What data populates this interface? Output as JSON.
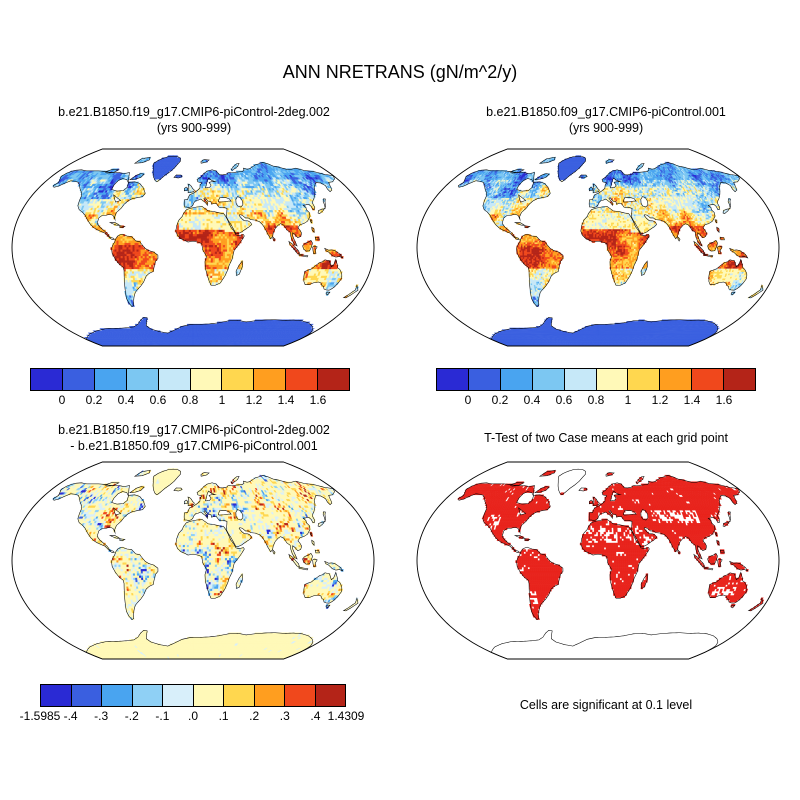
{
  "figure_title": "ANN NRETRANS (gN/m^2/y)",
  "panels": [
    {
      "title_line1": "b.e21.B1850.f19_g17.CMIP6-piControl-2deg.002",
      "title_line2": "(yrs 900-999)"
    },
    {
      "title_line1": "b.e21.B1850.f09_g17.CMIP6-piControl.001",
      "title_line2": "(yrs 900-999)"
    },
    {
      "title_line1": "b.e21.B1850.f19_g17.CMIP6-piControl-2deg.002",
      "title_line2": "- b.e21.B1850.f09_g17.CMIP6-piControl.001"
    },
    {
      "title_line1": "T-Test of two Case means at each grid point",
      "caption": "Cells are significant at 0.1 level"
    }
  ],
  "colorbars": {
    "mean": {
      "tick_labels": [
        "0",
        "0.2",
        "0.4",
        "0.6",
        "0.8",
        "1",
        "1.2",
        "1.4",
        "1.6"
      ],
      "colors": [
        "#2a2ad4",
        "#3a5fe0",
        "#49a4f0",
        "#7cc7f2",
        "#c6e8f8",
        "#fff9b8",
        "#ffd74f",
        "#ff9e1f",
        "#f0481c",
        "#b42418"
      ]
    },
    "diff": {
      "tick_labels": [
        "-1.5985",
        "-.4",
        "-.3",
        "-.2",
        "-.1",
        ".0",
        ".1",
        ".2",
        ".3",
        ".4",
        "1.4309"
      ],
      "colors": [
        "#2a2ad4",
        "#3a5fe0",
        "#49a4f0",
        "#8fd0f5",
        "#d8effa",
        "#fff9b8",
        "#ffd74f",
        "#ff9e1f",
        "#f0481c",
        "#b42418"
      ]
    }
  },
  "ttest": {
    "significant_color": "#e8231c"
  },
  "chart_data": [
    {
      "type": "heatmap",
      "panel": "top-left",
      "title": "b.e21.B1850.f19_g17.CMIP6-piControl-2deg.002",
      "subtitle": "(yrs 900-999)",
      "variable": "ANN NRETRANS",
      "units": "gN/m^2/y",
      "projection": "robinson-global",
      "levels": [
        0,
        0.2,
        0.4,
        0.6,
        0.8,
        1,
        1.2,
        1.4,
        1.6
      ],
      "palette": [
        "#2a2ad4",
        "#3a5fe0",
        "#49a4f0",
        "#7cc7f2",
        "#c6e8f8",
        "#fff9b8",
        "#ffd74f",
        "#ff9e1f",
        "#f0481c",
        "#b42418"
      ],
      "ocean": "masked-white",
      "qualitative_pattern": "high values (red, >1.4) in tropics: Amazon, Congo, SE Asia, coastal Australia; low values (blue, <0.4) at boreal/high latitudes, Greenland and Antarctica; pale band over Sahara/Arabia/central Asia"
    },
    {
      "type": "heatmap",
      "panel": "top-right",
      "title": "b.e21.B1850.f09_g17.CMIP6-piControl.001",
      "subtitle": "(yrs 900-999)",
      "variable": "ANN NRETRANS",
      "units": "gN/m^2/y",
      "projection": "robinson-global",
      "levels": [
        0,
        0.2,
        0.4,
        0.6,
        0.8,
        1,
        1.2,
        1.4,
        1.6
      ],
      "palette": [
        "#2a2ad4",
        "#3a5fe0",
        "#49a4f0",
        "#7cc7f2",
        "#c6e8f8",
        "#fff9b8",
        "#ffd74f",
        "#ff9e1f",
        "#f0481c",
        "#b42418"
      ],
      "ocean": "masked-white",
      "qualitative_pattern": "nearly identical spatial pattern to top-left case, finer (1-deg) grid"
    },
    {
      "type": "heatmap",
      "panel": "bottom-left",
      "title": "difference: b.e21.B1850.f19_g17.CMIP6-piControl-2deg.002 - b.e21.B1850.f09_g17.CMIP6-piControl.001",
      "min": -1.5985,
      "max": 1.4309,
      "levels": [
        -0.4,
        -0.3,
        -0.2,
        -0.1,
        0,
        0.1,
        0.2,
        0.3,
        0.4
      ],
      "palette": [
        "#2a2ad4",
        "#3a5fe0",
        "#49a4f0",
        "#8fd0f5",
        "#d8effa",
        "#fff9b8",
        "#ffd74f",
        "#ff9e1f",
        "#f0481c",
        "#b42418"
      ],
      "ocean": "masked-white",
      "qualitative_pattern": "mostly near-zero pale yellow over land with scattered strong positive (red) and negative (blue) speckles in vegetated regions; Antarctica uniformly near zero"
    },
    {
      "type": "heatmap",
      "panel": "bottom-right",
      "title": "T-Test of two Case means at each grid point",
      "significance_level": 0.1,
      "significant_color": "#e8231c",
      "note": "Cells are significant at 0.1 level",
      "qualitative_pattern": "most land cells significant (solid red) with white non-significant speckles; ice sheets (Greenland, Antarctica) not shaded"
    }
  ]
}
